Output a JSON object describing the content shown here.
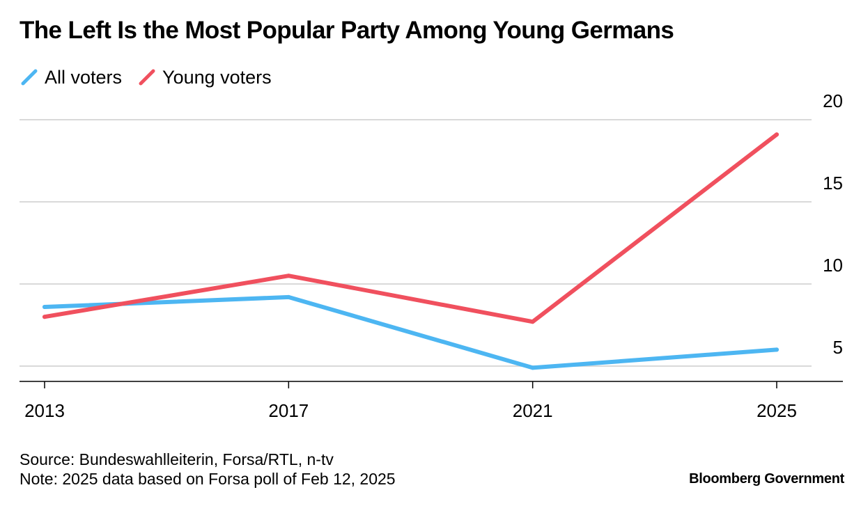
{
  "header": {
    "title": "The Left Is the Most Popular Party Among Young Germans"
  },
  "legend": {
    "items": [
      {
        "label": "All voters",
        "color": "#4DB6F2"
      },
      {
        "label": "Young voters",
        "color": "#F0505E"
      }
    ]
  },
  "chart_data": {
    "type": "line",
    "title": "The Left Is the Most Popular Party Among Young Germans",
    "xlabel": "",
    "ylabel": "",
    "categories": [
      "2013",
      "2017",
      "2021",
      "2025"
    ],
    "series": [
      {
        "name": "All voters",
        "color": "#4DB6F2",
        "values": [
          8.6,
          9.2,
          4.9,
          6.0
        ]
      },
      {
        "name": "Young voters",
        "color": "#F0505E",
        "values": [
          8.0,
          10.5,
          7.7,
          19.1
        ]
      }
    ],
    "yticks": [
      5,
      10,
      15,
      20
    ],
    "ylim": [
      4,
      21
    ],
    "y_axis_position": "right",
    "grid": true
  },
  "footer": {
    "source": "Source: Bundeswahlleiterin, Forsa/RTL, n-tv",
    "note": "Note: 2025 data based on Forsa poll of Feb 12, 2025",
    "brand": "Bloomberg Government"
  }
}
